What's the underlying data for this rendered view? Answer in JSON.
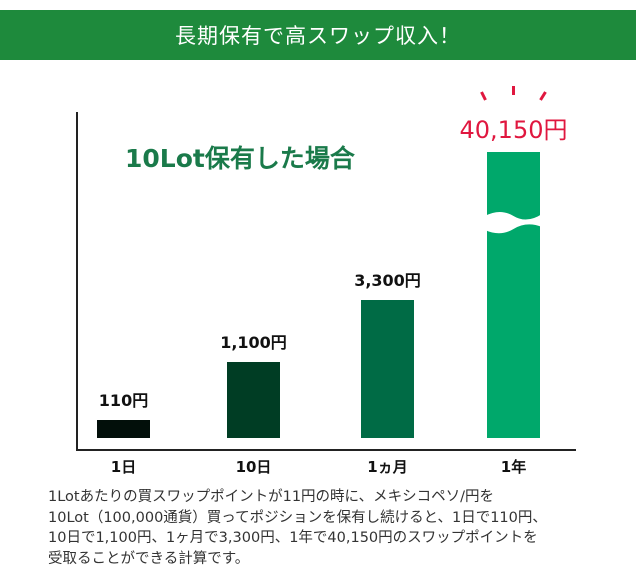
{
  "banner": {
    "title": "長期保有で高スワップ収入！",
    "color": "#1e8a3c"
  },
  "chart_data": {
    "type": "bar",
    "title": "10Lot保有した場合",
    "categories": [
      "1日",
      "10日",
      "1ヵ月",
      "1年"
    ],
    "values": [
      110,
      1100,
      3300,
      40150
    ],
    "value_labels": [
      "110円",
      "1,100円",
      "3,300円",
      "40,150円"
    ],
    "bar_colors": [
      "#020f0a",
      "#003d24",
      "#006b45",
      "#00a86b"
    ],
    "label_colors": [
      "#111111",
      "#111111",
      "#111111",
      "#e0173f"
    ],
    "title_color": "#1a7a4a",
    "axis_broken_last_bar": true,
    "grid": false
  },
  "description": {
    "lines": [
      "1Lotあたりの買スワップポイントが11円の時に、メキシコペソ/円を",
      "10Lot（100,000通貨）買ってポジションを保有し続けると、1日で110円、",
      "10日で1,100円、1ヶ月で3,300円、1年で40,150円のスワップポイントを",
      "受取ることができる計算です。"
    ]
  }
}
